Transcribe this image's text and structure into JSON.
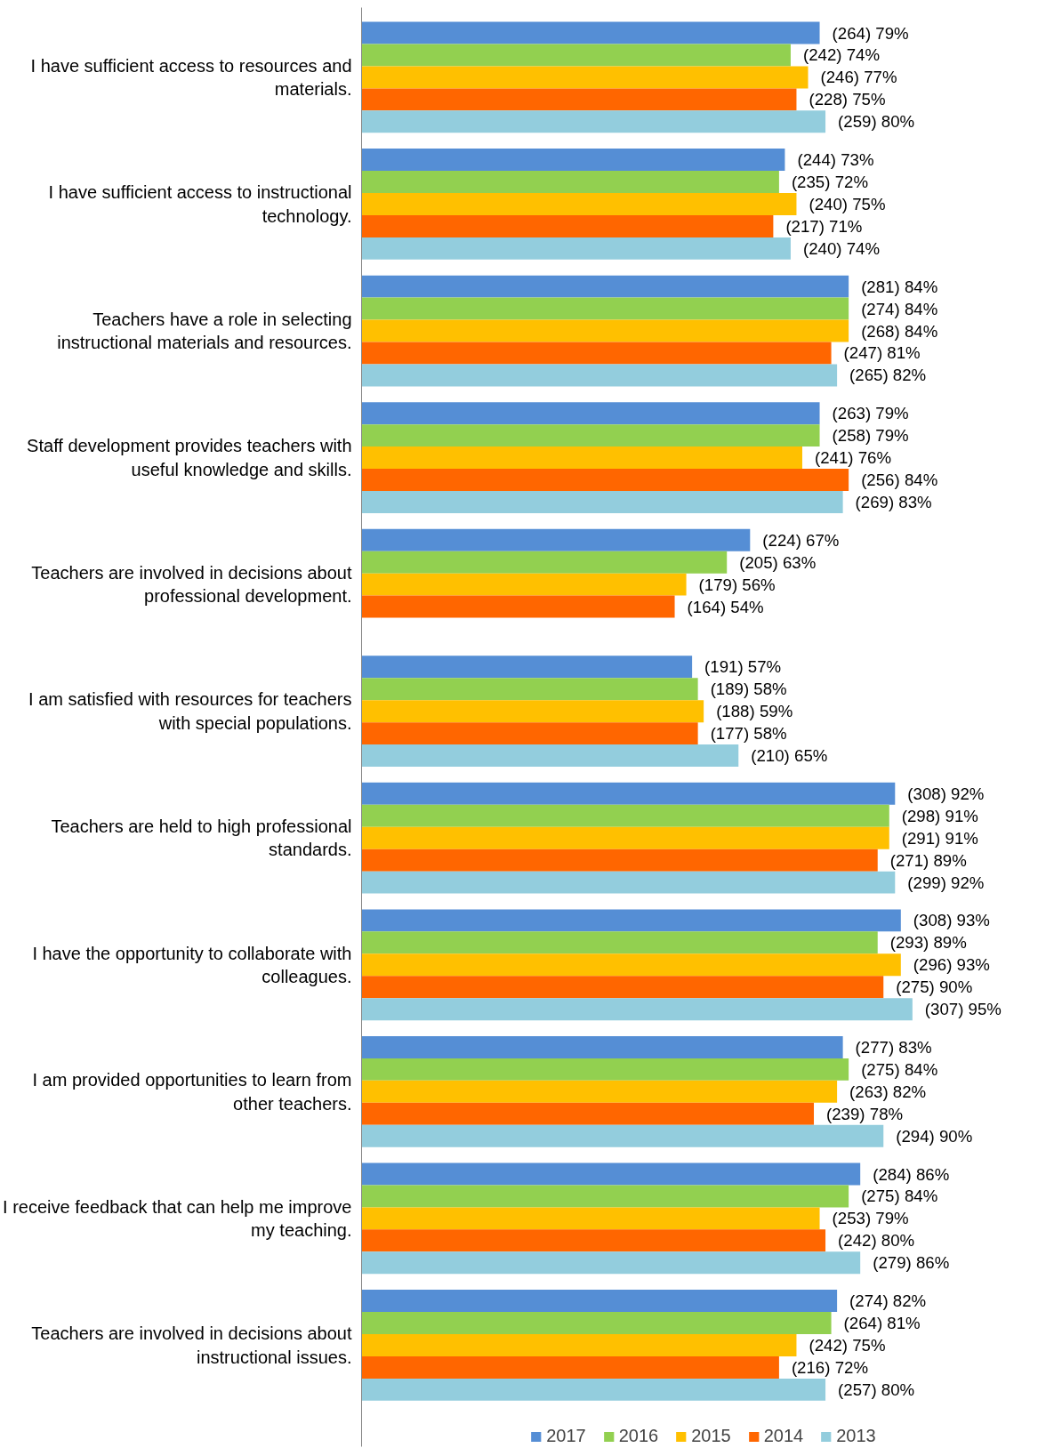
{
  "chart_data": {
    "type": "bar",
    "orientation": "horizontal",
    "legend": "bottom",
    "grid": false,
    "categories": [
      "I have sufficient access to resources and materials.",
      "I have sufficient access to instructional technology.",
      "Teachers have a role in selecting instructional materials and resources.",
      "Staff development provides teachers with useful knowledge and skills.",
      "Teachers are involved in decisions about professional development.",
      "I am satisfied with resources for teachers with special populations.",
      "Teachers are held to high professional standards.",
      "I have the opportunity to collaborate with colleagues.",
      "I am provided opportunities to learn from other teachers.",
      "I receive feedback that can help me improve my teaching.",
      "Teachers are involved in decisions about instructional issues."
    ],
    "series": [
      {
        "name": "2017",
        "color": "#558ed5",
        "values": [
          79,
          73,
          84,
          79,
          67,
          57,
          92,
          93,
          83,
          86,
          82
        ],
        "value_labels": [
          "(264) 79%",
          "(244) 73%",
          "(281) 84%",
          "(263) 79%",
          "(224) 67%",
          "(191) 57%",
          "(308) 92%",
          "(308) 93%",
          "(277) 83%",
          "(284) 86%",
          "(274) 82%"
        ]
      },
      {
        "name": "2016",
        "color": "#92d050",
        "values": [
          74,
          72,
          84,
          79,
          63,
          58,
          91,
          89,
          84,
          84,
          81
        ],
        "value_labels": [
          "(242) 74%",
          "(235) 72%",
          "(274) 84%",
          "(258) 79%",
          "(205) 63%",
          "(189) 58%",
          "(298) 91%",
          "(293) 89%",
          "(275) 84%",
          "(275) 84%",
          "(264) 81%"
        ]
      },
      {
        "name": "2015",
        "color": "#ffc000",
        "values": [
          77,
          75,
          84,
          76,
          56,
          59,
          91,
          93,
          82,
          79,
          75
        ],
        "value_labels": [
          "(246) 77%",
          "(240) 75%",
          "(268) 84%",
          "(241) 76%",
          "(179) 56%",
          "(188) 59%",
          "(291) 91%",
          "(296) 93%",
          "(263) 82%",
          "(253) 79%",
          "(242) 75%"
        ]
      },
      {
        "name": "2014",
        "color": "#ff6600",
        "values": [
          75,
          71,
          81,
          84,
          54,
          58,
          89,
          90,
          78,
          80,
          72
        ],
        "value_labels": [
          "(228) 75%",
          "(217) 71%",
          "(247) 81%",
          "(256) 84%",
          "(164) 54%",
          "(177) 58%",
          "(271) 89%",
          "(275) 90%",
          "(239) 78%",
          "(242) 80%",
          "(216) 72%"
        ]
      },
      {
        "name": "2013",
        "color": "#93cddd",
        "values": [
          80,
          74,
          82,
          83,
          null,
          65,
          92,
          95,
          90,
          86,
          80
        ],
        "value_labels": [
          "(259) 80%",
          "(240) 74%",
          "(265) 82%",
          "(269) 83%",
          null,
          "(210) 65%",
          "(299) 92%",
          "(307) 95%",
          "(294) 90%",
          "(279) 86%",
          "(257) 80%"
        ]
      }
    ]
  }
}
